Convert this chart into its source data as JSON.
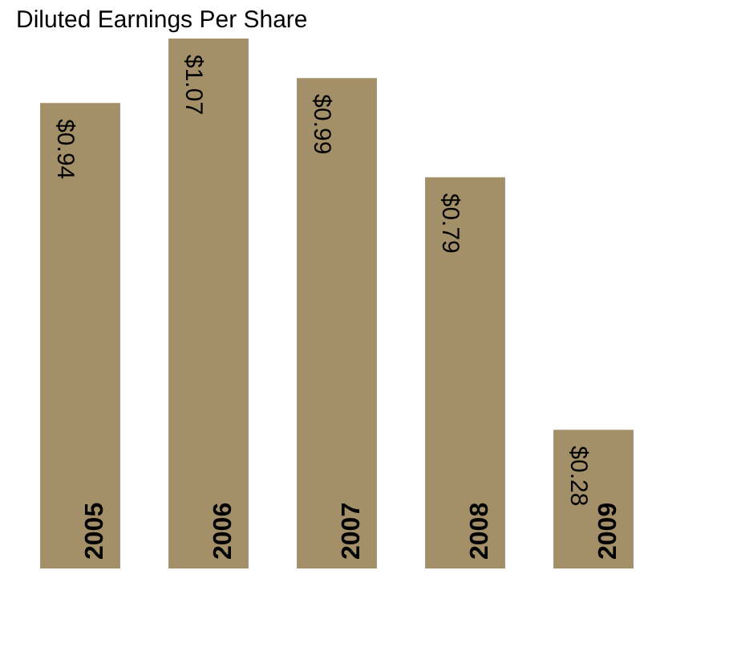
{
  "chart_data": {
    "type": "bar",
    "title": "Diluted Earnings Per Share",
    "categories": [
      "2005",
      "2006",
      "2007",
      "2008",
      "2009"
    ],
    "values": [
      0.94,
      1.07,
      0.99,
      0.79,
      0.28
    ],
    "value_labels": [
      "$0.94",
      "$1.07",
      "$0.99",
      "$0.79",
      "$0.28"
    ],
    "color": "#a39068",
    "grid": false
  }
}
